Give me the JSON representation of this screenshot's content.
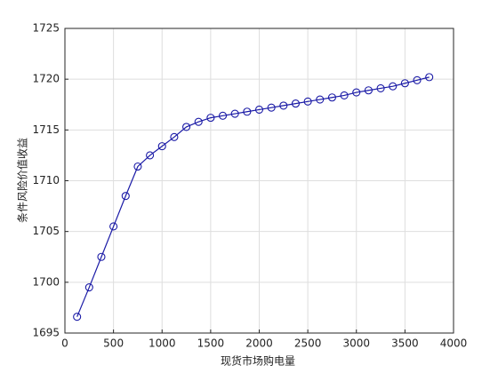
{
  "chart_data": {
    "type": "line",
    "xlabel": "现货市场购电量",
    "ylabel": "条件风险价值收益",
    "x": [
      125,
      250,
      375,
      500,
      625,
      750,
      875,
      1000,
      1125,
      1250,
      1375,
      1500,
      1625,
      1750,
      1875,
      2000,
      2125,
      2250,
      2375,
      2500,
      2625,
      2750,
      2875,
      3000,
      3125,
      3250,
      3375,
      3500,
      3625,
      3750
    ],
    "series": [
      {
        "name": "条件风险价值收益",
        "color": "#1a1aa6",
        "values": [
          1696.6,
          1699.5,
          1702.5,
          1705.5,
          1708.5,
          1711.4,
          1712.5,
          1713.4,
          1714.3,
          1715.3,
          1715.8,
          1716.2,
          1716.4,
          1716.6,
          1716.8,
          1717.0,
          1717.2,
          1717.4,
          1717.6,
          1717.8,
          1718.0,
          1718.2,
          1718.4,
          1718.7,
          1718.9,
          1719.1,
          1719.3,
          1719.6,
          1719.9,
          1720.2
        ]
      }
    ],
    "xlim": [
      0,
      4000
    ],
    "xticks": [
      0,
      500,
      1000,
      1500,
      2000,
      2500,
      3000,
      3500,
      4000
    ],
    "ylim": [
      1695,
      1725
    ],
    "yticks": [
      1695,
      1700,
      1705,
      1710,
      1715,
      1720,
      1725
    ],
    "grid": true
  }
}
